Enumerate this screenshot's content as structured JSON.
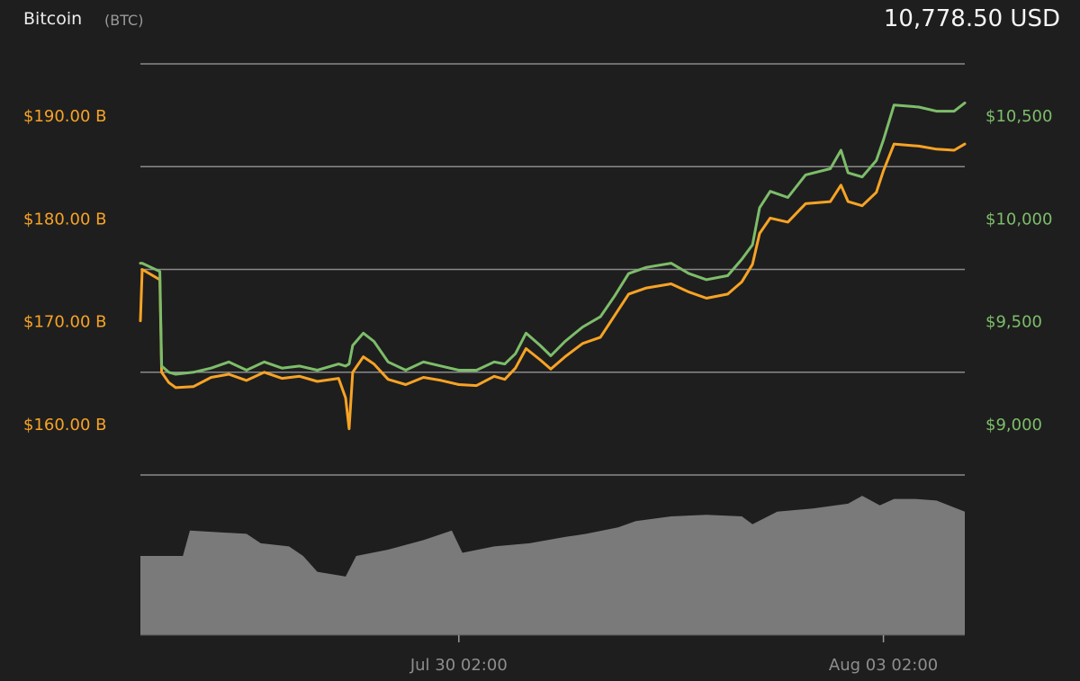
{
  "header": {
    "coin_name": "Bitcoin",
    "coin_symbol": "(BTC)",
    "current_price": "10,778.50 USD"
  },
  "colors": {
    "background": "#1e1e1e",
    "market_cap_line": "#f7a325",
    "price_line": "#7dbd6a",
    "volume_area": "#7a7a7a",
    "grid": "#8a8a8a",
    "x_tick_text": "#8e8e8e"
  },
  "chart_data": {
    "type": "line",
    "title": "",
    "series": [
      {
        "axis": "left",
        "unit": "USD billions",
        "color": "#f7a325",
        "values": [
          [
            0,
            170
          ],
          [
            0.05,
            175
          ],
          [
            0.3,
            174.5
          ],
          [
            0.55,
            174
          ],
          [
            0.6,
            165
          ],
          [
            0.8,
            164
          ],
          [
            1,
            163.5
          ],
          [
            1.5,
            163.6
          ],
          [
            2,
            164.5
          ],
          [
            2.5,
            164.8
          ],
          [
            3,
            164.2
          ],
          [
            3.5,
            165
          ],
          [
            4,
            164.4
          ],
          [
            4.5,
            164.6
          ],
          [
            5,
            164.1
          ],
          [
            5.6,
            164.4
          ],
          [
            5.8,
            162.5
          ],
          [
            5.9,
            159.5
          ],
          [
            6,
            165
          ],
          [
            6.3,
            166.5
          ],
          [
            6.6,
            165.8
          ],
          [
            7,
            164.3
          ],
          [
            7.5,
            163.8
          ],
          [
            8,
            164.5
          ],
          [
            8.5,
            164.2
          ],
          [
            9,
            163.8
          ],
          [
            9.5,
            163.7
          ],
          [
            10,
            164.6
          ],
          [
            10.3,
            164.3
          ],
          [
            10.6,
            165.4
          ],
          [
            10.9,
            167.3
          ],
          [
            11.3,
            166.2
          ],
          [
            11.6,
            165.3
          ],
          [
            12,
            166.5
          ],
          [
            12.5,
            167.8
          ],
          [
            13,
            168.4
          ],
          [
            13.4,
            170.5
          ],
          [
            13.8,
            172.6
          ],
          [
            14.3,
            173.2
          ],
          [
            15,
            173.6
          ],
          [
            15.5,
            172.8
          ],
          [
            16,
            172.2
          ],
          [
            16.6,
            172.6
          ],
          [
            17,
            173.8
          ],
          [
            17.3,
            175.5
          ],
          [
            17.5,
            178.5
          ],
          [
            17.8,
            180
          ],
          [
            18.3,
            179.6
          ],
          [
            18.8,
            181.4
          ],
          [
            19.5,
            181.6
          ],
          [
            19.8,
            183.2
          ],
          [
            20,
            181.6
          ],
          [
            20.4,
            181.2
          ],
          [
            20.8,
            182.5
          ],
          [
            21,
            184.6
          ],
          [
            21.3,
            187.2
          ],
          [
            22,
            187
          ],
          [
            22.5,
            186.7
          ],
          [
            23,
            186.6
          ],
          [
            23.3,
            187.2
          ]
        ]
      },
      {
        "axis": "right",
        "unit": "USD",
        "color": "#7dbd6a",
        "values": [
          [
            0,
            9780
          ],
          [
            0.05,
            9780
          ],
          [
            0.3,
            9760
          ],
          [
            0.55,
            9740
          ],
          [
            0.6,
            9280
          ],
          [
            0.8,
            9250
          ],
          [
            1,
            9240
          ],
          [
            1.5,
            9250
          ],
          [
            2,
            9270
          ],
          [
            2.5,
            9300
          ],
          [
            3,
            9260
          ],
          [
            3.5,
            9300
          ],
          [
            4,
            9270
          ],
          [
            4.5,
            9280
          ],
          [
            5,
            9260
          ],
          [
            5.6,
            9290
          ],
          [
            5.8,
            9280
          ],
          [
            5.9,
            9290
          ],
          [
            6,
            9380
          ],
          [
            6.3,
            9440
          ],
          [
            6.6,
            9400
          ],
          [
            7,
            9300
          ],
          [
            7.5,
            9260
          ],
          [
            8,
            9300
          ],
          [
            8.5,
            9280
          ],
          [
            9,
            9260
          ],
          [
            9.5,
            9260
          ],
          [
            10,
            9300
          ],
          [
            10.3,
            9290
          ],
          [
            10.6,
            9340
          ],
          [
            10.9,
            9440
          ],
          [
            11.3,
            9380
          ],
          [
            11.6,
            9330
          ],
          [
            12,
            9400
          ],
          [
            12.5,
            9470
          ],
          [
            13,
            9520
          ],
          [
            13.4,
            9620
          ],
          [
            13.8,
            9730
          ],
          [
            14.3,
            9760
          ],
          [
            15,
            9780
          ],
          [
            15.5,
            9730
          ],
          [
            16,
            9700
          ],
          [
            16.6,
            9720
          ],
          [
            17,
            9800
          ],
          [
            17.3,
            9870
          ],
          [
            17.5,
            10050
          ],
          [
            17.8,
            10130
          ],
          [
            18.3,
            10100
          ],
          [
            18.8,
            10210
          ],
          [
            19.5,
            10240
          ],
          [
            19.8,
            10330
          ],
          [
            20,
            10220
          ],
          [
            20.4,
            10200
          ],
          [
            20.8,
            10280
          ],
          [
            21,
            10380
          ],
          [
            21.3,
            10550
          ],
          [
            22,
            10540
          ],
          [
            22.5,
            10520
          ],
          [
            23,
            10520
          ],
          [
            23.3,
            10560
          ]
        ]
      },
      {
        "axis": "volume",
        "unit": "relative",
        "color": "#7a7a7a",
        "values": [
          [
            0,
            0.5
          ],
          [
            1.2,
            0.5
          ],
          [
            1.4,
            0.66
          ],
          [
            3,
            0.64
          ],
          [
            3.4,
            0.58
          ],
          [
            4.2,
            0.56
          ],
          [
            4.6,
            0.5
          ],
          [
            5,
            0.4
          ],
          [
            5.8,
            0.37
          ],
          [
            6.1,
            0.5
          ],
          [
            7,
            0.54
          ],
          [
            8,
            0.6
          ],
          [
            8.8,
            0.66
          ],
          [
            9.1,
            0.52
          ],
          [
            10,
            0.56
          ],
          [
            11,
            0.58
          ],
          [
            12,
            0.62
          ],
          [
            12.6,
            0.64
          ],
          [
            13.5,
            0.68
          ],
          [
            14,
            0.72
          ],
          [
            15,
            0.75
          ],
          [
            16,
            0.76
          ],
          [
            17,
            0.75
          ],
          [
            17.3,
            0.7
          ],
          [
            18,
            0.78
          ],
          [
            19,
            0.8
          ],
          [
            20,
            0.83
          ],
          [
            20.4,
            0.88
          ],
          [
            20.9,
            0.82
          ],
          [
            21.3,
            0.86
          ],
          [
            21.9,
            0.86
          ],
          [
            22.5,
            0.85
          ],
          [
            23.3,
            0.78
          ]
        ]
      }
    ],
    "x_ticks": [
      {
        "x": 9,
        "label": "Jul 30 02:00"
      },
      {
        "x": 21,
        "label": "Aug 03 02:00"
      }
    ],
    "x_range": [
      0,
      23.3
    ],
    "y_left_ticks": [
      {
        "value": 190,
        "label": "$190.00 B"
      },
      {
        "value": 180,
        "label": "$180.00 B"
      },
      {
        "value": 170,
        "label": "$170.00 B"
      },
      {
        "value": 160,
        "label": "$160.00 B"
      }
    ],
    "y_left_range": [
      155,
      195
    ],
    "y_right_ticks": [
      {
        "value": 10500,
        "label": "$10,500"
      },
      {
        "value": 10000,
        "label": "$10,000"
      },
      {
        "value": 9500,
        "label": "$9,500"
      },
      {
        "value": 9000,
        "label": "$9,000"
      }
    ],
    "y_right_range": [
      8750,
      10750
    ],
    "volume_range": [
      0,
      1
    ],
    "grid": true,
    "legend": "none"
  }
}
